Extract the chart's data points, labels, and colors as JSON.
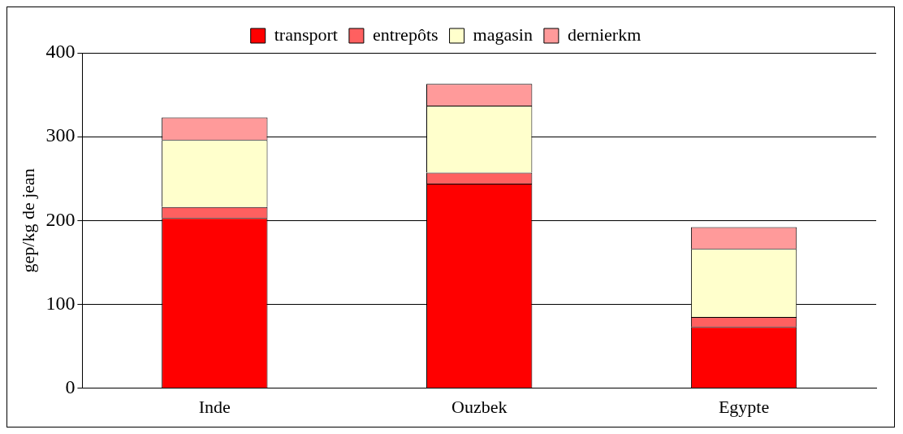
{
  "chart_data": {
    "type": "bar",
    "stacked": true,
    "ylabel": "gep/kg de jean",
    "categories": [
      "Inde",
      "Ouzbek",
      "Egypte"
    ],
    "series": [
      {
        "name": "transport",
        "color": "#ff0000",
        "values": [
          203,
          244,
          73
        ]
      },
      {
        "name": "entrepôts",
        "color": "#ff6060",
        "values": [
          13,
          13,
          12
        ]
      },
      {
        "name": "magasin",
        "color": "#ffffcc",
        "values": [
          80,
          80,
          81
        ]
      },
      {
        "name": "dernierkm",
        "color": "#ff9a9a",
        "values": [
          27,
          26,
          26
        ]
      }
    ],
    "ylim": [
      0,
      400
    ],
    "yticks": [
      0,
      100,
      200,
      300,
      400
    ],
    "grid": "y",
    "legend": "top"
  }
}
